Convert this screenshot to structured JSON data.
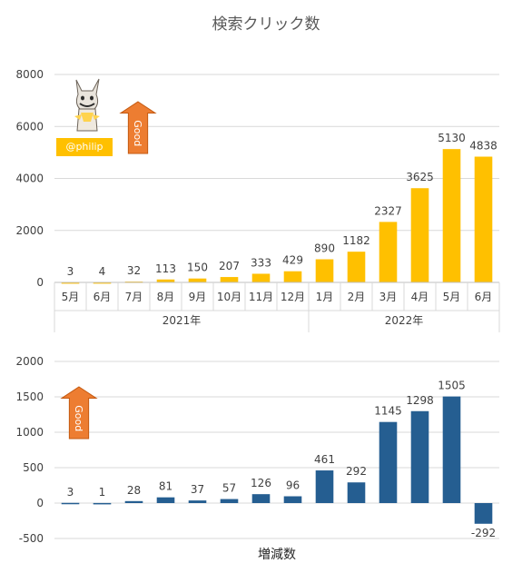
{
  "title": "検索クリック数",
  "bottom_title": "増減数",
  "handle": "@philip",
  "good_label": "Good",
  "colors": {
    "top_bars": "#ffc000",
    "bottom_bars": "#255e91",
    "arrow": "#ed7d31",
    "grid": "#d9d9d9"
  },
  "chart_data": [
    {
      "type": "bar",
      "title": "検索クリック数",
      "categories": [
        "5月",
        "6月",
        "7月",
        "8月",
        "9月",
        "10月",
        "11月",
        "12月",
        "1月",
        "2月",
        "3月",
        "4月",
        "5月",
        "6月"
      ],
      "groups": [
        {
          "label": "2021年",
          "count": 8
        },
        {
          "label": "2022年",
          "count": 6
        }
      ],
      "values": [
        3,
        4,
        32,
        113,
        150,
        207,
        333,
        429,
        890,
        1182,
        2327,
        3625,
        5130,
        4838
      ],
      "ylim": [
        0,
        8000
      ],
      "yticks": [
        0,
        2000,
        4000,
        6000,
        8000
      ],
      "grid": true
    },
    {
      "type": "bar",
      "title": "増減数",
      "values": [
        3,
        1,
        28,
        81,
        37,
        57,
        126,
        96,
        461,
        292,
        1145,
        1298,
        1505,
        -292
      ],
      "ylim": [
        -500,
        2000
      ],
      "yticks": [
        -500,
        0,
        500,
        1000,
        1500,
        2000
      ],
      "grid": true
    }
  ]
}
